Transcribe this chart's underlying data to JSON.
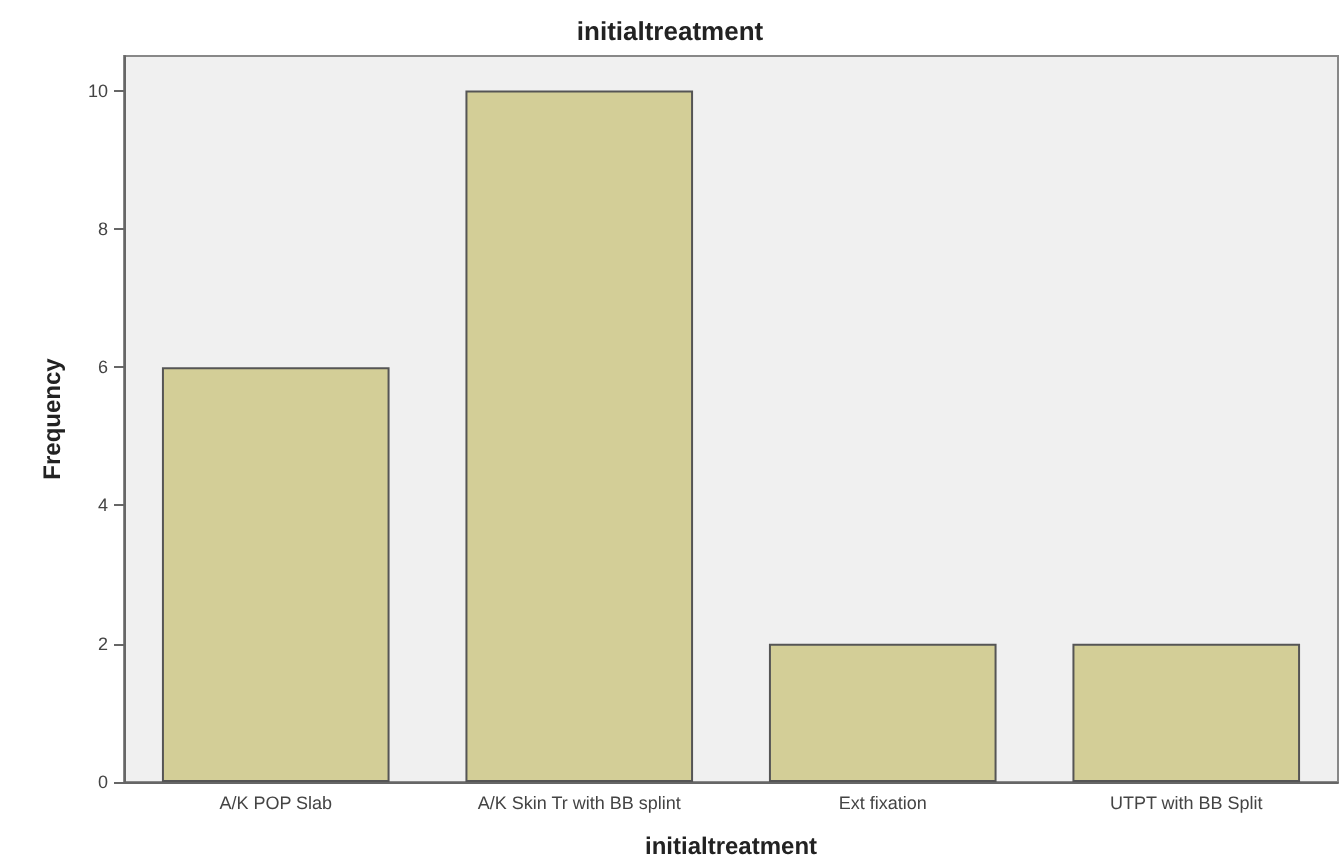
{
  "chart_data": {
    "type": "bar",
    "title": "initialtreatment",
    "xlabel": "initialtreatment",
    "ylabel": "Frequency",
    "categories": [
      "A/K POP Slab",
      "A/K Skin Tr with BB splint",
      "Ext fixation",
      "UTPT with BB Split"
    ],
    "values": [
      6,
      10,
      2,
      2
    ],
    "color": "#d3ce97",
    "ylim": [
      0,
      10.5
    ],
    "yticks": [
      0,
      2,
      4,
      6,
      8,
      10
    ],
    "grid": false
  }
}
